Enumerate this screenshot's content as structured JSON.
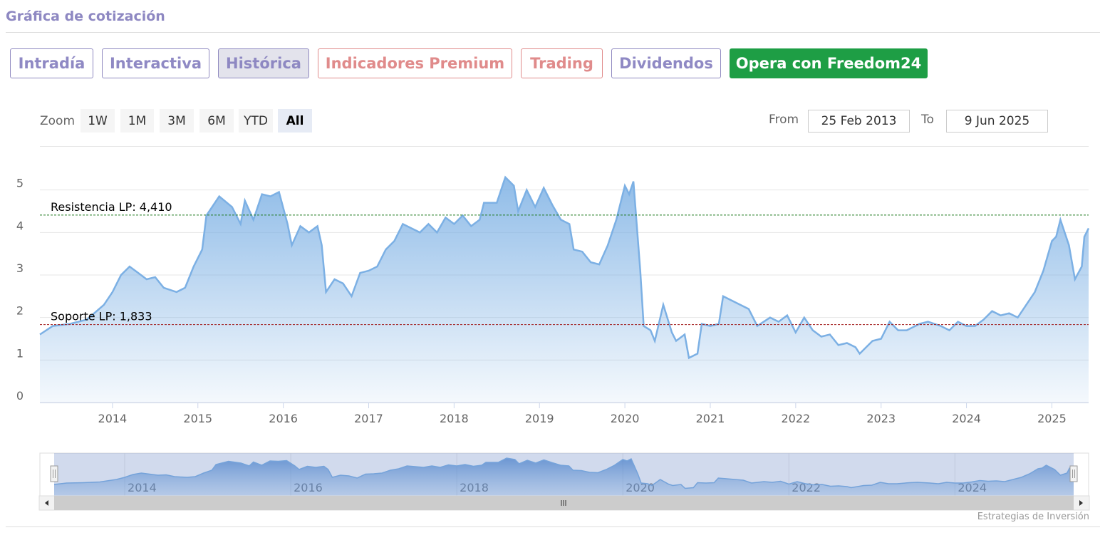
{
  "header": {
    "title": "Gráfica de cotización"
  },
  "tabs": [
    "Intradía",
    "Interactiva",
    "Histórica",
    "Indicadores Premium",
    "Trading",
    "Dividendos",
    "Opera con Freedom24"
  ],
  "zoom": {
    "label": "Zoom",
    "buttons": [
      "1W",
      "1M",
      "3M",
      "6M",
      "YTD",
      "All"
    ]
  },
  "range": {
    "from_label": "From",
    "from": "25 Feb 2013",
    "to_label": "To",
    "to": "9 Jun 2025"
  },
  "chart_data": {
    "type": "area",
    "color": "#7cb0e4",
    "x": [
      2013.15,
      2013.3,
      2013.5,
      2013.7,
      2013.9,
      2014.0,
      2014.1,
      2014.2,
      2014.3,
      2014.4,
      2014.5,
      2014.6,
      2014.75,
      2014.85,
      2014.95,
      2015.05,
      2015.1,
      2015.25,
      2015.4,
      2015.5,
      2015.55,
      2015.65,
      2015.75,
      2015.85,
      2015.95,
      2016.05,
      2016.1,
      2016.2,
      2016.3,
      2016.4,
      2016.45,
      2016.5,
      2016.6,
      2016.7,
      2016.8,
      2016.9,
      2017.0,
      2017.1,
      2017.2,
      2017.3,
      2017.4,
      2017.5,
      2017.6,
      2017.7,
      2017.8,
      2017.9,
      2018.0,
      2018.1,
      2018.2,
      2018.3,
      2018.35,
      2018.5,
      2018.6,
      2018.7,
      2018.75,
      2018.85,
      2018.95,
      2019.05,
      2019.15,
      2019.25,
      2019.35,
      2019.4,
      2019.5,
      2019.6,
      2019.7,
      2019.8,
      2019.9,
      2019.95,
      2020.0,
      2020.05,
      2020.1,
      2020.18,
      2020.22,
      2020.3,
      2020.35,
      2020.45,
      2020.55,
      2020.6,
      2020.7,
      2020.75,
      2020.85,
      2020.9,
      2021.0,
      2021.1,
      2021.15,
      2021.25,
      2021.35,
      2021.45,
      2021.55,
      2021.7,
      2021.8,
      2021.9,
      2022.0,
      2022.1,
      2022.2,
      2022.3,
      2022.4,
      2022.5,
      2022.6,
      2022.7,
      2022.75,
      2022.9,
      2023.0,
      2023.1,
      2023.2,
      2023.3,
      2023.45,
      2023.55,
      2023.7,
      2023.8,
      2023.9,
      2024.0,
      2024.1,
      2024.2,
      2024.3,
      2024.4,
      2024.5,
      2024.6,
      2024.7,
      2024.8,
      2024.9,
      2025.0,
      2025.05,
      2025.1,
      2025.2,
      2025.27,
      2025.35,
      2025.38,
      2025.43
    ],
    "values": [
      1.6,
      1.8,
      1.85,
      1.95,
      2.3,
      2.6,
      3.0,
      3.2,
      3.05,
      2.9,
      2.95,
      2.7,
      2.6,
      2.7,
      3.2,
      3.6,
      4.4,
      4.85,
      4.6,
      4.2,
      4.75,
      4.3,
      4.9,
      4.85,
      4.95,
      4.2,
      3.7,
      4.15,
      4.0,
      4.15,
      3.7,
      2.6,
      2.9,
      2.8,
      2.5,
      3.05,
      3.1,
      3.2,
      3.6,
      3.8,
      4.2,
      4.1,
      4.0,
      4.2,
      4.0,
      4.35,
      4.2,
      4.4,
      4.15,
      4.3,
      4.7,
      4.7,
      5.3,
      5.1,
      4.5,
      5.0,
      4.6,
      5.05,
      4.65,
      4.3,
      4.2,
      3.6,
      3.55,
      3.3,
      3.25,
      3.7,
      4.3,
      4.7,
      5.1,
      4.9,
      5.2,
      3.1,
      1.8,
      1.7,
      1.45,
      2.3,
      1.65,
      1.45,
      1.6,
      1.05,
      1.15,
      1.85,
      1.8,
      1.85,
      2.5,
      2.4,
      2.3,
      2.2,
      1.8,
      2.0,
      1.9,
      2.05,
      1.65,
      2.0,
      1.7,
      1.55,
      1.6,
      1.35,
      1.4,
      1.3,
      1.15,
      1.45,
      1.5,
      1.9,
      1.7,
      1.7,
      1.85,
      1.9,
      1.8,
      1.7,
      1.9,
      1.8,
      1.8,
      1.95,
      2.15,
      2.05,
      2.1,
      2.0,
      2.3,
      2.6,
      3.1,
      3.8,
      3.9,
      4.3,
      3.7,
      2.9,
      3.2,
      3.9,
      4.1
    ],
    "xlim": [
      2013.15,
      2025.43
    ],
    "xticks": [
      2014,
      2015,
      2016,
      2017,
      2018,
      2019,
      2020,
      2021,
      2022,
      2023,
      2024,
      2025
    ],
    "ylim": [
      0,
      6
    ],
    "yticks": [
      0,
      1,
      2,
      3,
      4,
      5
    ],
    "grid": true,
    "plot_lines": [
      {
        "label": "Resistencia LP: 4,410",
        "value": 4.41,
        "color": "#1f7a1f"
      },
      {
        "label": "Soporte LP: 1,833",
        "value": 1.833,
        "color": "#a01818"
      }
    ]
  },
  "navigator": {
    "xticks": [
      2014,
      2016,
      2018,
      2020,
      2022,
      2024
    ]
  },
  "credit": "Estrategias de Inversión"
}
